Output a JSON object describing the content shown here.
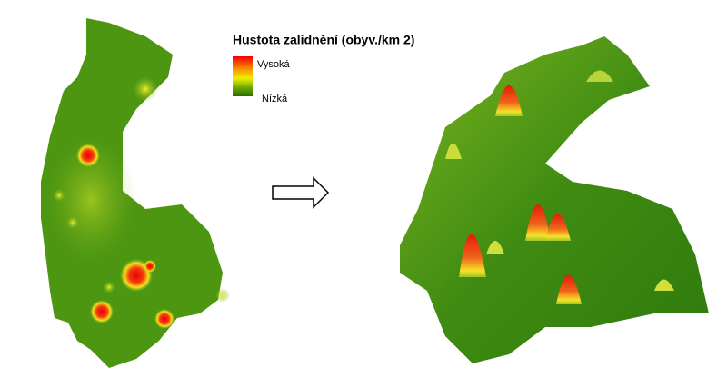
{
  "legend": {
    "title": "Hustota zalidnění (obyv./km 2)",
    "high": "Vysoká",
    "low": "Nízká"
  }
}
